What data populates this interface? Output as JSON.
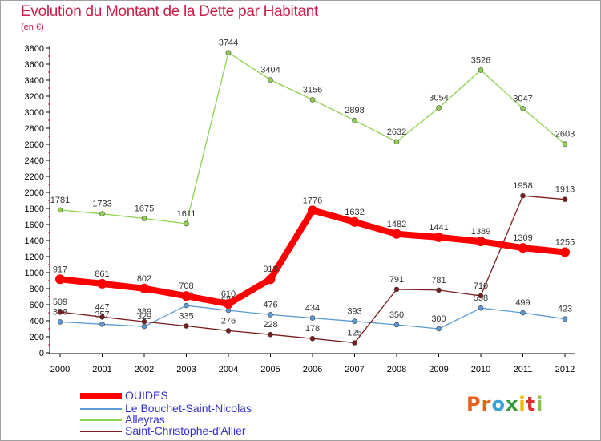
{
  "title": "Evolution du Montant de la Dette par Habitant",
  "unit_label": "(en €)",
  "logo": {
    "text": "Proxiti",
    "colors": [
      "#e8601c",
      "#e8601c",
      "#3aa0d8",
      "#2f9e3a",
      "#f2b800",
      "#e03030",
      "#8bc34a"
    ]
  },
  "chart_data": {
    "type": "line",
    "x": [
      "2000",
      "2001",
      "2002",
      "2003",
      "2004",
      "2005",
      "2006",
      "2007",
      "2008",
      "2009",
      "2010",
      "2011",
      "2012"
    ],
    "ylim": [
      0,
      3800
    ],
    "yticks": [
      0,
      200,
      400,
      600,
      800,
      1000,
      1200,
      1400,
      1600,
      1800,
      2000,
      2200,
      2400,
      2600,
      2800,
      3000,
      3200,
      3400,
      3600,
      3800
    ],
    "grid": false,
    "legend_position": "bottom-left",
    "series": [
      {
        "name": "Le Bouchet-Saint-Nicolas",
        "color": "#5b9bd5",
        "values": [
          386,
          357,
          329,
          589,
          529,
          476,
          434,
          393,
          350,
          300,
          558,
          499,
          423
        ],
        "labels": [
          "386",
          "357",
          "329",
          "589",
          "529",
          "476",
          "434",
          "393",
          "350",
          "300",
          "558",
          "499",
          "423"
        ]
      },
      {
        "name": "Alleyras",
        "color": "#8fd14f",
        "values": [
          1781,
          1733,
          1675,
          1611,
          3744,
          3404,
          3156,
          2898,
          2632,
          3054,
          3526,
          3047,
          2603
        ],
        "labels": [
          "1781",
          "1733",
          "1675",
          "1611",
          "3744",
          "3404",
          "3156",
          "2898",
          "2632",
          "3054",
          "3526",
          "3047",
          "2603"
        ]
      },
      {
        "name": "Saint-Christophe-d'Allier",
        "color": "#7b1c1c",
        "values": [
          509,
          447,
          389,
          335,
          276,
          228,
          178,
          125,
          791,
          781,
          710,
          1958,
          1913
        ],
        "labels": [
          "509",
          "447",
          "389",
          "335",
          "276",
          "228",
          "178",
          "125",
          "791",
          "781",
          "710",
          "1958",
          "1913"
        ]
      },
      {
        "name": "OUIDES",
        "color": "#ff0000",
        "values": [
          917,
          861,
          802,
          708,
          610,
          918,
          1776,
          1632,
          1482,
          1441,
          1389,
          1309,
          1255
        ],
        "labels": [
          "917",
          "861",
          "802",
          "708",
          "610",
          "918",
          "1776",
          "1632",
          "1482",
          "1441",
          "1389",
          "1309",
          "1255"
        ]
      }
    ]
  }
}
